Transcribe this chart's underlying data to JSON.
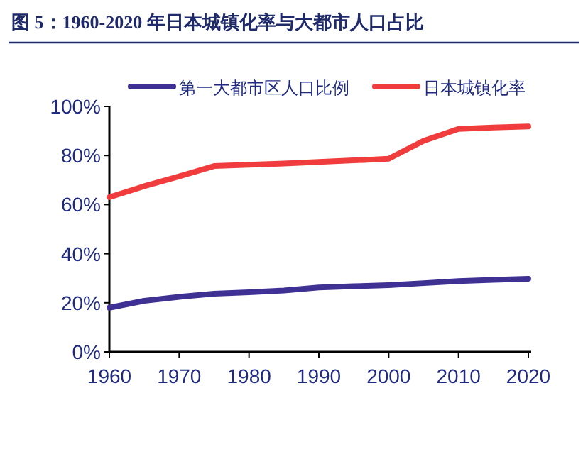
{
  "chart_data": {
    "type": "line",
    "title": "图 5：1960-2020 年日本城镇化率与大都市人口占比",
    "x": [
      1960,
      1965,
      1970,
      1975,
      1980,
      1985,
      1990,
      1995,
      2000,
      2005,
      2010,
      2015,
      2020
    ],
    "series": [
      {
        "name": "第一大都市区人口比例",
        "color": "#3f3194",
        "values": [
          18,
          20.8,
          22.4,
          23.7,
          24.3,
          25,
          26.2,
          26.7,
          27.2,
          28,
          28.8,
          29.3,
          29.8
        ]
      },
      {
        "name": "日本城镇化率",
        "color": "#f03c3c",
        "values": [
          63,
          67.5,
          71.5,
          75.7,
          76.2,
          76.7,
          77.4,
          78,
          78.7,
          86,
          90.8,
          91.4,
          91.8
        ]
      }
    ],
    "xlim": [
      1960,
      2020
    ],
    "xticks": [
      1960,
      1970,
      1980,
      1990,
      2000,
      2010,
      2020
    ],
    "ylim": [
      0,
      100
    ],
    "yticks": [
      {
        "value": 0,
        "label": "0%"
      },
      {
        "value": 20,
        "label": "20%"
      },
      {
        "value": 40,
        "label": "40%"
      },
      {
        "value": 60,
        "label": "60%"
      },
      {
        "value": 80,
        "label": "80%"
      },
      {
        "value": 100,
        "label": "100%"
      }
    ],
    "legend": "top",
    "grid": false,
    "marker": "none",
    "line_style": "solid"
  }
}
